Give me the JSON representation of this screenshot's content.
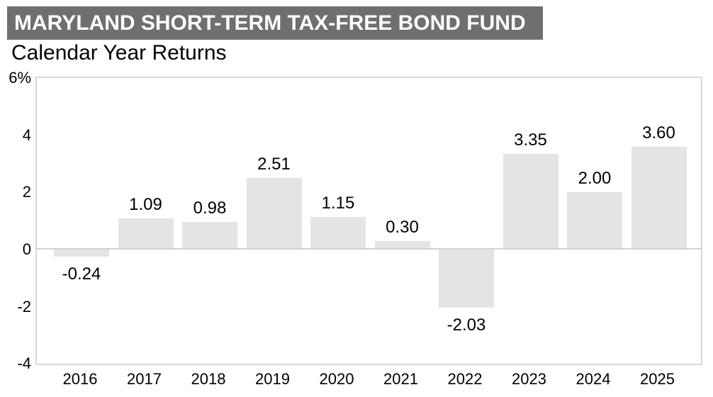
{
  "header": {
    "title": "MARYLAND SHORT-TERM TAX-FREE BOND FUND",
    "subtitle": "Calendar Year Returns"
  },
  "chart_data": {
    "type": "bar",
    "title": "Calendar Year Returns",
    "categories": [
      "2016",
      "2017",
      "2018",
      "2019",
      "2020",
      "2021",
      "2022",
      "2023",
      "2024",
      "2025"
    ],
    "values": [
      -0.24,
      1.09,
      0.98,
      2.51,
      1.15,
      0.3,
      -2.03,
      3.35,
      2.0,
      3.6
    ],
    "value_labels": [
      "-0.24",
      "1.09",
      "0.98",
      "2.51",
      "1.15",
      "0.30",
      "-2.03",
      "3.35",
      "2.00",
      "3.60"
    ],
    "y_ticks": [
      {
        "label": "6%",
        "value": 6
      },
      {
        "label": "4",
        "value": 4
      },
      {
        "label": "2",
        "value": 2
      },
      {
        "label": "0",
        "value": 0
      },
      {
        "label": "-2",
        "value": -2
      },
      {
        "label": "-4",
        "value": -4
      }
    ],
    "ylim": [
      -4,
      6
    ],
    "xlabel": "",
    "ylabel": "",
    "grid": false,
    "legend": false,
    "bar_orientation": "vertical"
  },
  "colors": {
    "banner_bg": "#6f6f6f",
    "banner_text": "#ffffff",
    "bar_fill": "#e4e4e4",
    "plot_border": "#d9d9d9",
    "zero_line": "#d2d2d2",
    "label_text": "#000000"
  }
}
